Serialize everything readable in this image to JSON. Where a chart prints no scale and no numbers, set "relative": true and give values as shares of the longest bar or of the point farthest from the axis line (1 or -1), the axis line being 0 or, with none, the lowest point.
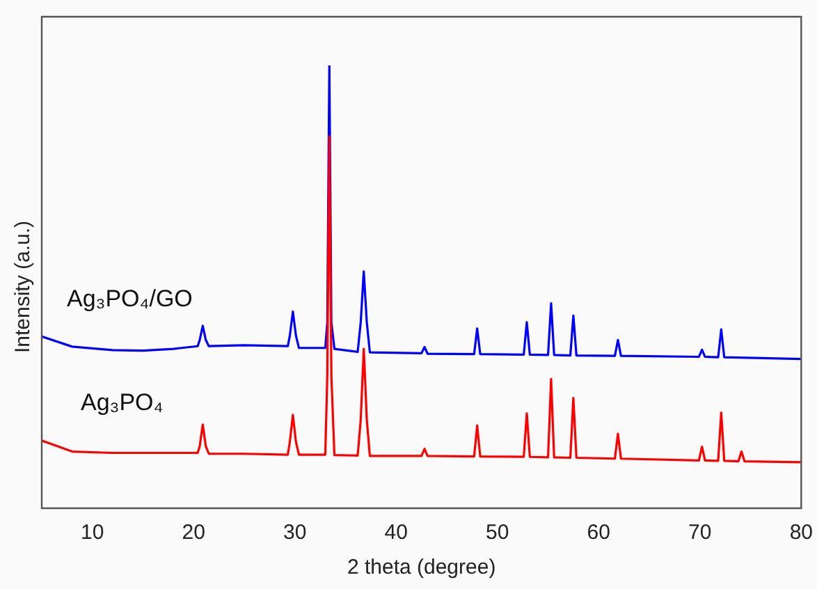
{
  "chart_data": {
    "type": "line",
    "xlabel": "2 theta (degree)",
    "ylabel": "Intensity (a.u.)",
    "relative": true,
    "xlim": [
      5,
      80
    ],
    "xticks": [
      10,
      20,
      30,
      40,
      50,
      60,
      70,
      80
    ],
    "grid": false,
    "legend": false,
    "marker": "none",
    "tick_labels": "x",
    "series": [
      {
        "name": "Ag₃PO₄/GO",
        "color": "#0000ff",
        "x": [
          5,
          8,
          12,
          15,
          18,
          20.4,
          20.6,
          20.9,
          21.2,
          21.5,
          25,
          29.3,
          29.5,
          29.8,
          30.1,
          30.4,
          33.0,
          33.2,
          33.4,
          33.6,
          33.9,
          36.2,
          36.5,
          36.8,
          37.1,
          37.4,
          42.5,
          42.8,
          43.1,
          47.7,
          48.0,
          48.3,
          52.6,
          52.9,
          53.2,
          55.0,
          55.3,
          55.6,
          57.2,
          57.5,
          57.8,
          61.6,
          61.9,
          62.2,
          69.9,
          70.2,
          70.5,
          71.8,
          72.1,
          72.4,
          80
        ],
        "values": [
          0.388,
          0.365,
          0.357,
          0.356,
          0.36,
          0.366,
          0.38,
          0.412,
          0.38,
          0.366,
          0.368,
          0.366,
          0.39,
          0.444,
          0.39,
          0.362,
          0.362,
          0.42,
          1.0,
          0.42,
          0.36,
          0.353,
          0.42,
          0.535,
          0.42,
          0.352,
          0.35,
          0.364,
          0.349,
          0.348,
          0.406,
          0.348,
          0.347,
          0.42,
          0.347,
          0.346,
          0.463,
          0.346,
          0.345,
          0.435,
          0.345,
          0.344,
          0.38,
          0.344,
          0.342,
          0.358,
          0.342,
          0.341,
          0.404,
          0.341,
          0.337
        ]
      },
      {
        "name": "Ag₃PO₄",
        "color": "#ff0000",
        "x": [
          5,
          8,
          12,
          15,
          18,
          20.4,
          20.6,
          20.9,
          21.2,
          21.5,
          25,
          29.3,
          29.5,
          29.8,
          30.1,
          30.4,
          33.0,
          33.2,
          33.4,
          33.6,
          33.9,
          36.2,
          36.5,
          36.8,
          37.1,
          37.4,
          42.5,
          42.8,
          43.1,
          47.7,
          48.0,
          48.3,
          52.6,
          52.9,
          53.2,
          55.0,
          55.3,
          55.6,
          57.2,
          57.5,
          57.8,
          61.6,
          61.9,
          62.2,
          69.9,
          70.2,
          70.5,
          71.8,
          72.1,
          72.4,
          73.8,
          74.1,
          74.4,
          80
        ],
        "values": [
          0.153,
          0.128,
          0.125,
          0.125,
          0.125,
          0.125,
          0.14,
          0.189,
          0.14,
          0.123,
          0.123,
          0.121,
          0.15,
          0.211,
          0.15,
          0.121,
          0.121,
          0.3,
          0.84,
          0.3,
          0.12,
          0.119,
          0.2,
          0.36,
          0.2,
          0.118,
          0.118,
          0.134,
          0.118,
          0.117,
          0.187,
          0.117,
          0.116,
          0.214,
          0.116,
          0.115,
          0.292,
          0.115,
          0.114,
          0.249,
          0.114,
          0.112,
          0.168,
          0.112,
          0.108,
          0.139,
          0.108,
          0.107,
          0.216,
          0.107,
          0.106,
          0.128,
          0.106,
          0.104
        ]
      }
    ]
  }
}
